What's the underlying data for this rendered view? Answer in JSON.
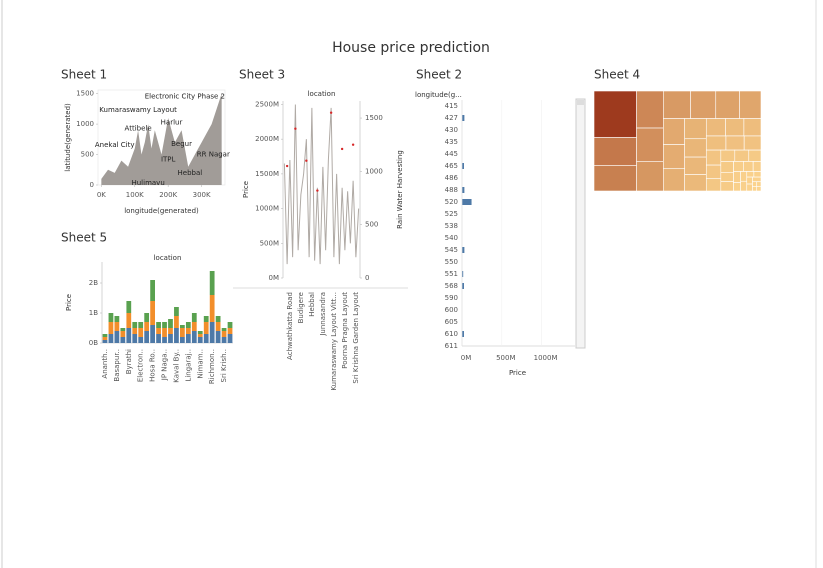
{
  "title": "House price prediction",
  "chart_data": [
    {
      "sheet": "Sheet 1",
      "type": "area",
      "color": "#a19c98",
      "x": [
        0,
        20000,
        40000,
        60000,
        80000,
        100000,
        110000,
        120000,
        130000,
        140000,
        150000,
        160000,
        180000,
        200000,
        220000,
        240000,
        260000,
        280000,
        300000,
        330000,
        360000
      ],
      "values": [
        100,
        250,
        200,
        400,
        300,
        600,
        900,
        500,
        700,
        1000,
        600,
        900,
        500,
        1100,
        700,
        900,
        300,
        500,
        700,
        1000,
        1500
      ],
      "xlim": [
        -10000,
        370000
      ],
      "xticks": [
        {
          "value": 0,
          "label": "0K"
        },
        {
          "value": 100000,
          "label": "100K"
        },
        {
          "value": 200000,
          "label": "200K"
        },
        {
          "value": 300000,
          "label": "300K"
        }
      ],
      "ylim": [
        0,
        1560
      ],
      "yticks": [
        0,
        500,
        1000,
        1500
      ],
      "x_label": "longitude(generated)",
      "y_label": "latitude(generated)",
      "annotations": [
        {
          "text": "Electronic City Phase 2",
          "x": 250000,
          "y": 1450
        },
        {
          "text": "Kumaraswamy Layout",
          "x": 110000,
          "y": 1230
        },
        {
          "text": "Attibele",
          "x": 110000,
          "y": 930
        },
        {
          "text": "Harlur",
          "x": 210000,
          "y": 1030
        },
        {
          "text": "Anekal City",
          "x": 40000,
          "y": 660
        },
        {
          "text": "Begur",
          "x": 240000,
          "y": 670
        },
        {
          "text": "ITPL",
          "x": 200000,
          "y": 420
        },
        {
          "text": "RR Nagar",
          "x": 335000,
          "y": 500
        },
        {
          "text": "Hebbal",
          "x": 265000,
          "y": 200
        },
        {
          "text": "Hulimavu",
          "x": 140000,
          "y": 30
        }
      ]
    },
    {
      "sheet": "Sheet 3",
      "type": "line",
      "title": "location",
      "categories": [
        null,
        null,
        "Achwathkatta Road",
        null,
        null,
        null,
        "Budigere",
        null,
        null,
        null,
        "Hebbal",
        null,
        null,
        null,
        "Junnasandra",
        null,
        null,
        null,
        "Kumaraswamy Layout Vitt...",
        null,
        null,
        null,
        "Poorna Pragna Layout",
        null,
        null,
        null,
        "Sri Krishna Garden Layout",
        null
      ],
      "series": [
        {
          "type": "line",
          "color": "#b0aaa5",
          "values": [
            1650000000,
            200000000,
            1700000000,
            300000000,
            2500000000,
            400000000,
            1200000000,
            1500000000,
            2000000000,
            300000000,
            2450000000,
            250000000,
            1300000000,
            200000000,
            1600000000,
            400000000,
            1700000000,
            2450000000,
            300000000,
            1500000000,
            200000000,
            1300000000,
            400000000,
            1250000000,
            500000000,
            1400000000,
            300000000,
            1000000000
          ]
        },
        {
          "type": "scatter",
          "color": "#d62728",
          "axis": "y2",
          "values": [
            null,
            1050,
            null,
            null,
            1400,
            null,
            null,
            null,
            1100,
            null,
            null,
            null,
            820,
            null,
            null,
            null,
            null,
            1550,
            null,
            null,
            null,
            1210,
            null,
            null,
            null,
            1250,
            null,
            null
          ]
        }
      ],
      "ylim": [
        0,
        2550000000
      ],
      "yticks": [
        {
          "value": 0,
          "label": "0M"
        },
        {
          "value": 500000000,
          "label": "500M"
        },
        {
          "value": 1000000000,
          "label": "1000M"
        },
        {
          "value": 1500000000,
          "label": "1500M"
        },
        {
          "value": 2000000000,
          "label": "2000M"
        },
        {
          "value": 2500000000,
          "label": "2500M"
        }
      ],
      "y2lim": [
        0,
        1660
      ],
      "y2ticks": [
        0,
        500,
        1000,
        1500
      ],
      "y_label": "Price",
      "y2_label": "Rain Water Harvesting"
    },
    {
      "sheet": "Sheet 2",
      "type": "bar",
      "orientation": "horizontal",
      "color": "#4e79a7",
      "y_label": "longitude(g...",
      "categories": [
        "415",
        "427",
        "430",
        "435",
        "445",
        "465",
        "486",
        "488",
        "520",
        "525",
        "538",
        "540",
        "545",
        "550",
        "551",
        "568",
        "590",
        "600",
        "605",
        "610",
        "611"
      ],
      "values": [
        null,
        30000000,
        null,
        null,
        null,
        25000000,
        null,
        30000000,
        120000000,
        null,
        null,
        null,
        30000000,
        null,
        15000000,
        25000000,
        null,
        null,
        null,
        25000000,
        null
      ],
      "xlim": [
        0,
        1420000000
      ],
      "xticks": [
        {
          "value": 0,
          "label": "0M"
        },
        {
          "value": 500000000,
          "label": "500M"
        },
        {
          "value": 1000000000,
          "label": "1000M"
        }
      ],
      "x_label": "Price"
    },
    {
      "sheet": "Sheet 4",
      "type": "treemap",
      "color_range": [
        "#fbd38d",
        "#9e3a1e"
      ],
      "values": [
        100,
        60,
        55,
        50,
        45,
        40,
        38,
        35,
        33,
        30,
        28,
        26,
        24,
        22,
        20,
        19,
        18,
        17,
        16,
        15,
        14,
        13,
        12,
        11,
        10,
        9,
        8,
        8,
        7,
        7,
        6,
        6,
        5,
        5,
        4,
        4,
        3,
        3,
        3,
        2,
        2,
        2,
        2,
        2,
        1,
        1,
        1,
        1
      ]
    },
    {
      "sheet": "Sheet 5",
      "type": "bar",
      "stacked": true,
      "title": "location",
      "categories": [
        "Ananth..",
        null,
        "Basapur..",
        null,
        "Byrathi",
        null,
        "Electron..",
        null,
        "Hosa Ro..",
        null,
        "JP Naga..",
        null,
        "Kaval By..",
        null,
        "Lingaraj..",
        null,
        "Nimam..",
        null,
        "Richmon..",
        null,
        "Sri Krish..",
        null
      ],
      "series": [
        {
          "color": "#4e79a7",
          "values": [
            100000000,
            300000000,
            400000000,
            200000000,
            500000000,
            300000000,
            200000000,
            400000000,
            600000000,
            300000000,
            200000000,
            300000000,
            500000000,
            200000000,
            300000000,
            400000000,
            200000000,
            300000000,
            700000000,
            400000000,
            200000000,
            300000000
          ]
        },
        {
          "color": "#f28e2b",
          "values": [
            100000000,
            400000000,
            300000000,
            200000000,
            500000000,
            200000000,
            300000000,
            300000000,
            800000000,
            200000000,
            300000000,
            200000000,
            400000000,
            300000000,
            200000000,
            300000000,
            100000000,
            400000000,
            900000000,
            300000000,
            200000000,
            200000000
          ]
        },
        {
          "color": "#59a14f",
          "values": [
            100000000,
            300000000,
            200000000,
            100000000,
            400000000,
            200000000,
            200000000,
            300000000,
            700000000,
            200000000,
            200000000,
            300000000,
            300000000,
            100000000,
            200000000,
            300000000,
            100000000,
            200000000,
            800000000,
            200000000,
            100000000,
            200000000
          ]
        }
      ],
      "ylim": [
        0,
        2700000000
      ],
      "yticks": [
        {
          "value": 0,
          "label": "0B"
        },
        {
          "value": 1000000000,
          "label": "1B"
        },
        {
          "value": 2000000000,
          "label": "2B"
        }
      ],
      "y_label": "Price"
    }
  ]
}
